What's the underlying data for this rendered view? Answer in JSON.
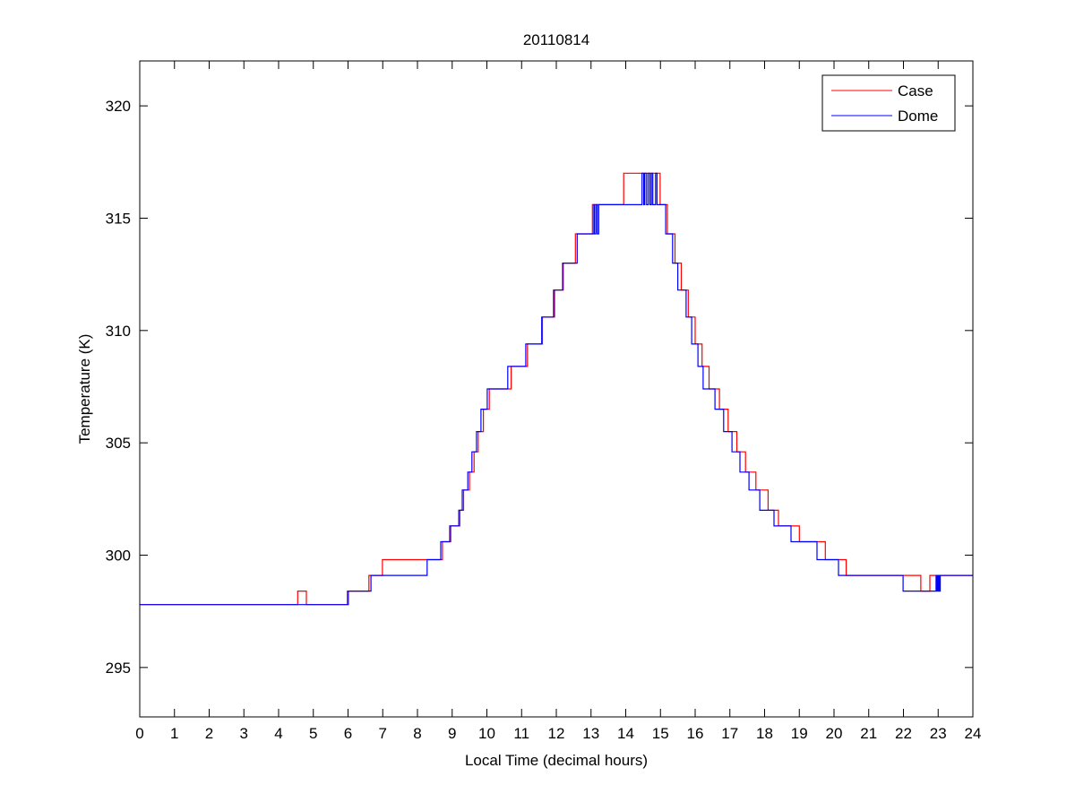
{
  "chart_data": {
    "type": "line",
    "title": "20110814",
    "xlabel": "Local Time (decimal hours)",
    "ylabel": "Temperature (K)",
    "xlim": [
      0,
      24
    ],
    "ylim": [
      292.8,
      322
    ],
    "xticks": [
      0,
      1,
      2,
      3,
      4,
      5,
      6,
      7,
      8,
      9,
      10,
      11,
      12,
      13,
      14,
      15,
      16,
      17,
      18,
      19,
      20,
      21,
      22,
      23,
      24
    ],
    "yticks": [
      295,
      300,
      305,
      310,
      315,
      320
    ],
    "grid": false,
    "legend": {
      "placement": "top-right",
      "entries": [
        "Case",
        "Dome"
      ]
    },
    "step": true,
    "series": [
      {
        "name": "Case",
        "color": "#ff0000",
        "points": [
          [
            0,
            297.8
          ],
          [
            4.55,
            298.4
          ],
          [
            4.8,
            297.8
          ],
          [
            5.98,
            298.4
          ],
          [
            6.6,
            299.1
          ],
          [
            6.99,
            299.8
          ],
          [
            8.72,
            300.6
          ],
          [
            8.96,
            301.3
          ],
          [
            9.22,
            302.0
          ],
          [
            9.33,
            302.9
          ],
          [
            9.5,
            303.7
          ],
          [
            9.63,
            304.6
          ],
          [
            9.75,
            305.5
          ],
          [
            9.9,
            306.5
          ],
          [
            10.07,
            307.4
          ],
          [
            10.7,
            308.4
          ],
          [
            11.17,
            309.4
          ],
          [
            11.6,
            310.6
          ],
          [
            11.95,
            311.8
          ],
          [
            12.2,
            313.0
          ],
          [
            12.55,
            314.3
          ],
          [
            13.04,
            315.6
          ],
          [
            13.94,
            317.0
          ],
          [
            14.99,
            315.6
          ],
          [
            15.2,
            314.3
          ],
          [
            15.42,
            313.0
          ],
          [
            15.6,
            311.8
          ],
          [
            15.8,
            310.6
          ],
          [
            16.0,
            309.4
          ],
          [
            16.2,
            308.4
          ],
          [
            16.4,
            307.4
          ],
          [
            16.7,
            306.5
          ],
          [
            16.95,
            305.5
          ],
          [
            17.2,
            304.6
          ],
          [
            17.45,
            303.7
          ],
          [
            17.75,
            302.9
          ],
          [
            18.1,
            302.0
          ],
          [
            18.4,
            301.3
          ],
          [
            19.0,
            300.6
          ],
          [
            19.75,
            299.8
          ],
          [
            20.35,
            299.1
          ],
          [
            22.5,
            298.4
          ],
          [
            22.76,
            299.1
          ],
          [
            24,
            299.1
          ]
        ]
      },
      {
        "name": "Dome",
        "color": "#0000ff",
        "points": [
          [
            0,
            297.8
          ],
          [
            6.01,
            298.4
          ],
          [
            6.66,
            299.1
          ],
          [
            8.28,
            299.8
          ],
          [
            8.67,
            300.6
          ],
          [
            8.93,
            301.3
          ],
          [
            9.19,
            302.0
          ],
          [
            9.29,
            302.9
          ],
          [
            9.45,
            303.7
          ],
          [
            9.57,
            304.6
          ],
          [
            9.7,
            305.5
          ],
          [
            9.83,
            306.5
          ],
          [
            10.01,
            307.4
          ],
          [
            10.6,
            308.4
          ],
          [
            11.12,
            309.4
          ],
          [
            11.58,
            310.6
          ],
          [
            11.92,
            311.8
          ],
          [
            12.18,
            313.0
          ],
          [
            12.6,
            314.3
          ],
          [
            13.08,
            315.6
          ],
          [
            13.1,
            314.3
          ],
          [
            13.14,
            315.6
          ],
          [
            13.18,
            314.3
          ],
          [
            13.22,
            315.6
          ],
          [
            14.47,
            317.0
          ],
          [
            14.52,
            315.6
          ],
          [
            14.55,
            317.0
          ],
          [
            14.6,
            315.6
          ],
          [
            14.65,
            317.0
          ],
          [
            14.7,
            315.6
          ],
          [
            14.74,
            317.0
          ],
          [
            14.78,
            315.6
          ],
          [
            14.86,
            317.0
          ],
          [
            14.9,
            315.6
          ],
          [
            15.15,
            314.3
          ],
          [
            15.35,
            313.0
          ],
          [
            15.5,
            311.8
          ],
          [
            15.74,
            310.6
          ],
          [
            15.9,
            309.4
          ],
          [
            16.08,
            308.4
          ],
          [
            16.23,
            307.4
          ],
          [
            16.57,
            306.5
          ],
          [
            16.82,
            305.5
          ],
          [
            17.06,
            304.6
          ],
          [
            17.29,
            303.7
          ],
          [
            17.55,
            302.9
          ],
          [
            17.86,
            302.0
          ],
          [
            18.27,
            301.3
          ],
          [
            18.76,
            300.6
          ],
          [
            19.51,
            299.8
          ],
          [
            20.13,
            299.1
          ],
          [
            21.99,
            298.4
          ],
          [
            22.94,
            299.1
          ],
          [
            22.97,
            298.4
          ],
          [
            23.0,
            299.1
          ],
          [
            23.03,
            298.4
          ],
          [
            23.06,
            299.1
          ],
          [
            24,
            299.1
          ]
        ]
      }
    ]
  }
}
